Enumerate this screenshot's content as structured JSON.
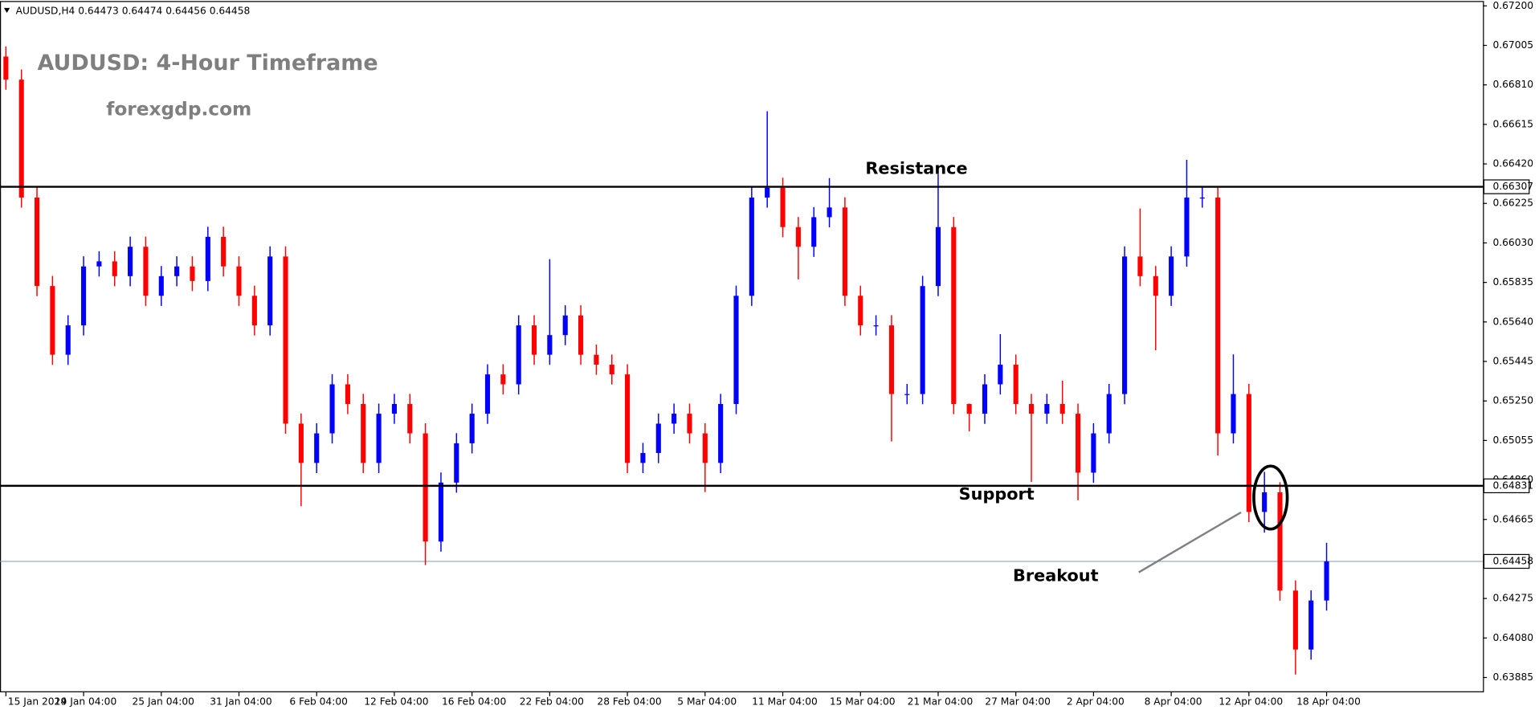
{
  "chart_data": {
    "type": "candlestick",
    "quote": {
      "symbol": "AUDUSD,H4",
      "open": 0.64473,
      "high": 0.64474,
      "low": 0.64456,
      "close": 0.64458
    },
    "title": "AUDUSD: 4-Hour Timeframe",
    "subtitle": "forexgdp.com",
    "annotations": {
      "resistance": "Resistance",
      "support": "Support",
      "breakout": "Breakout"
    },
    "up_color": "#0000ff",
    "down_color": "#ff0000",
    "ylim": [
      0.63812,
      0.67224
    ],
    "yticks": [
      {
        "value": 0.672,
        "label": "0.67200"
      },
      {
        "value": 0.67005,
        "label": "0.67005"
      },
      {
        "value": 0.6681,
        "label": "0.66810"
      },
      {
        "value": 0.66615,
        "label": "0.66615"
      },
      {
        "value": 0.6642,
        "label": "0.66420"
      },
      {
        "value": 0.66225,
        "label": "0.66225"
      },
      {
        "value": 0.6603,
        "label": "0.66030"
      },
      {
        "value": 0.65835,
        "label": "0.65835"
      },
      {
        "value": 0.6564,
        "label": "0.65640"
      },
      {
        "value": 0.65445,
        "label": "0.65445"
      },
      {
        "value": 0.6525,
        "label": "0.65250"
      },
      {
        "value": 0.65055,
        "label": "0.65055"
      },
      {
        "value": 0.6486,
        "label": "0.64860"
      },
      {
        "value": 0.64665,
        "label": "0.64665"
      },
      {
        "value": 0.64275,
        "label": "0.64275"
      },
      {
        "value": 0.6408,
        "label": "0.64080"
      },
      {
        "value": 0.63885,
        "label": "0.63885"
      }
    ],
    "levels": [
      0.66307,
      0.64831
    ],
    "last_price": 0.64458,
    "categories": [
      "15 Jan 2024",
      null,
      null,
      null,
      null,
      "19 Jan 04:00",
      null,
      null,
      null,
      null,
      "25 Jan 04:00",
      null,
      null,
      null,
      null,
      "31 Jan 04:00",
      null,
      null,
      null,
      null,
      "6 Feb 04:00",
      null,
      null,
      null,
      null,
      "12 Feb 04:00",
      null,
      null,
      null,
      null,
      "16 Feb 04:00",
      null,
      null,
      null,
      null,
      "22 Feb 04:00",
      null,
      null,
      null,
      null,
      "28 Feb 04:00",
      null,
      null,
      null,
      null,
      "5 Mar 04:00",
      null,
      null,
      null,
      null,
      "11 Mar 04:00",
      null,
      null,
      null,
      null,
      "15 Mar 04:00",
      null,
      null,
      null,
      null,
      "21 Mar 04:00",
      null,
      null,
      null,
      null,
      "27 Mar 04:00",
      null,
      null,
      null,
      null,
      "2 Apr 04:00",
      null,
      null,
      null,
      null,
      "8 Apr 04:00",
      null,
      null,
      null,
      null,
      "12 Apr 04:00",
      null,
      null,
      null,
      null,
      "18 Apr 04:00"
    ],
    "open": [
      0.6695,
      0.66836,
      0.66254,
      0.65817,
      0.65478,
      0.65623,
      0.65914,
      0.65939,
      0.65866,
      0.66011,
      0.65769,
      0.65866,
      0.65914,
      0.65842,
      0.6606,
      0.65914,
      0.65769,
      0.65623,
      0.65963,
      0.65138,
      0.64944,
      0.6509,
      0.65332,
      0.65235,
      0.64944,
      0.65187,
      0.65235,
      0.6509,
      0.64556,
      0.64847,
      0.65041,
      0.65187,
      0.65381,
      0.65332,
      0.65623,
      0.65478,
      0.65575,
      0.65672,
      0.65478,
      0.65429,
      0.65381,
      0.64944,
      0.64993,
      0.65138,
      0.65187,
      0.6509,
      0.64944,
      0.65235,
      0.65769,
      0.66254,
      0.66302,
      0.66108,
      0.66011,
      0.66157,
      0.66205,
      0.65769,
      0.65623,
      0.65623,
      0.65284,
      0.65284,
      0.65817,
      0.66108,
      0.65235,
      0.65187,
      0.65332,
      0.65429,
      0.65235,
      0.65187,
      0.65235,
      0.65187,
      0.64896,
      0.6509,
      0.65284,
      0.65963,
      0.65866,
      0.65769,
      0.65963,
      0.66254,
      0.66254,
      0.6509,
      0.65284,
      0.64702,
      0.64799,
      0.64314,
      0.64023,
      0.64265
    ],
    "high": [
      0.67,
      0.66886,
      0.66304,
      0.65867,
      0.65673,
      0.65964,
      0.65989,
      0.65989,
      0.66061,
      0.66061,
      0.65916,
      0.65964,
      0.65964,
      0.6611,
      0.6611,
      0.65964,
      0.65819,
      0.66013,
      0.66013,
      0.65188,
      0.6514,
      0.65382,
      0.65382,
      0.65285,
      0.65237,
      0.65285,
      0.65285,
      0.6514,
      0.64897,
      0.65091,
      0.65237,
      0.65431,
      0.65431,
      0.65673,
      0.65673,
      0.6595,
      0.65722,
      0.65722,
      0.65528,
      0.65479,
      0.65431,
      0.65043,
      0.65188,
      0.65237,
      0.65237,
      0.6514,
      0.65285,
      0.65819,
      0.66304,
      0.6668,
      0.66352,
      0.66158,
      0.66207,
      0.6635,
      0.66255,
      0.65819,
      0.65673,
      0.65673,
      0.65334,
      0.65867,
      0.6637,
      0.66158,
      0.65237,
      0.65382,
      0.6558,
      0.65479,
      0.65285,
      0.65285,
      0.6535,
      0.65237,
      0.6514,
      0.65334,
      0.66013,
      0.662,
      0.65916,
      0.66013,
      0.6644,
      0.66304,
      0.66304,
      0.6548,
      0.65334,
      0.649,
      0.64849,
      0.64364,
      0.64315,
      0.6455
    ],
    "low": [
      0.66786,
      0.66204,
      0.65767,
      0.65428,
      0.65428,
      0.65573,
      0.65864,
      0.65816,
      0.65816,
      0.65719,
      0.65719,
      0.65816,
      0.65792,
      0.65792,
      0.65864,
      0.65719,
      0.65573,
      0.65573,
      0.65088,
      0.6473,
      0.64894,
      0.6504,
      0.65185,
      0.64894,
      0.64894,
      0.65137,
      0.6504,
      0.6444,
      0.64506,
      0.64797,
      0.64991,
      0.65137,
      0.65282,
      0.65282,
      0.65428,
      0.65428,
      0.65525,
      0.65428,
      0.65379,
      0.65331,
      0.64894,
      0.64894,
      0.64943,
      0.65088,
      0.6504,
      0.648,
      0.64894,
      0.65185,
      0.65719,
      0.66204,
      0.66058,
      0.6585,
      0.65961,
      0.66107,
      0.65719,
      0.65573,
      0.65573,
      0.6505,
      0.65234,
      0.65234,
      0.65767,
      0.65185,
      0.651,
      0.65137,
      0.65282,
      0.65185,
      0.6485,
      0.65137,
      0.65137,
      0.6476,
      0.64846,
      0.6504,
      0.65234,
      0.65816,
      0.655,
      0.65719,
      0.65913,
      0.66204,
      0.6498,
      0.6504,
      0.64652,
      0.646,
      0.64264,
      0.639,
      0.63973,
      0.64215
    ],
    "close": [
      0.66836,
      0.66254,
      0.65817,
      0.65478,
      0.65623,
      0.65914,
      0.65939,
      0.65866,
      0.66011,
      0.65769,
      0.65866,
      0.65914,
      0.65842,
      0.6606,
      0.65914,
      0.65769,
      0.65623,
      0.65963,
      0.65138,
      0.64944,
      0.6509,
      0.65332,
      0.65235,
      0.64944,
      0.65187,
      0.65235,
      0.6509,
      0.64556,
      0.64847,
      0.65041,
      0.65187,
      0.65381,
      0.65332,
      0.65623,
      0.65478,
      0.65575,
      0.65672,
      0.65478,
      0.65429,
      0.65381,
      0.64944,
      0.64993,
      0.65138,
      0.65187,
      0.6509,
      0.64944,
      0.65235,
      0.65769,
      0.66254,
      0.66302,
      0.66108,
      0.66011,
      0.66157,
      0.66205,
      0.65769,
      0.65623,
      0.65623,
      0.65284,
      0.65284,
      0.65817,
      0.66108,
      0.65235,
      0.65187,
      0.65332,
      0.65429,
      0.65235,
      0.65187,
      0.65235,
      0.65187,
      0.64896,
      0.6509,
      0.65284,
      0.65963,
      0.65866,
      0.65769,
      0.65963,
      0.66254,
      0.66254,
      0.6509,
      0.65284,
      0.64702,
      0.64799,
      0.64314,
      0.64023,
      0.64265,
      0.64458
    ]
  }
}
